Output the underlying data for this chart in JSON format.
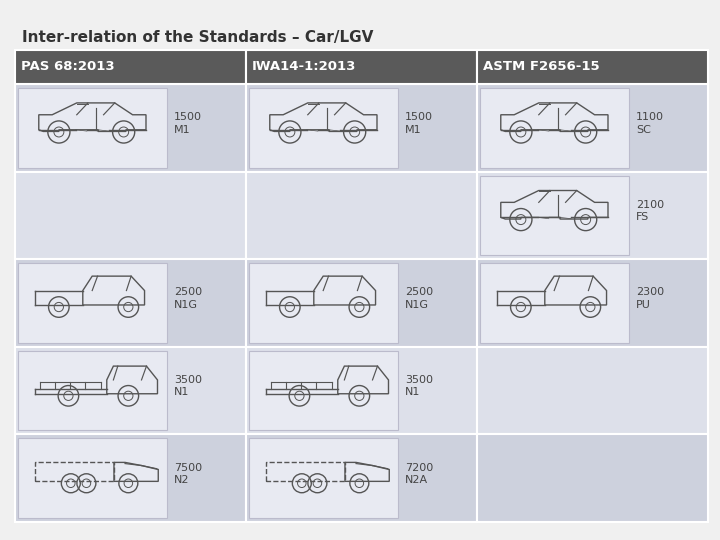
{
  "title": "Inter-relation of the Standards – Car/LGV",
  "title_fontsize": 11,
  "title_color": "#333333",
  "bg_color": "#f0f0f0",
  "header_bg": "#5a5a5a",
  "header_text_color": "#ffffff",
  "cell_bg_light": "#cdd1dd",
  "cell_bg_lighter": "#dde0ea",
  "cell_img_bg": "#e8eaf2",
  "headers": [
    "PAS 68:2013",
    "IWA14-1:2013",
    "ASTM F2656-15"
  ],
  "row_labels": [
    [
      "1500\nM1",
      "1500\nM1",
      "1100\nSC"
    ],
    [
      "",
      "",
      "2100\nFS"
    ],
    [
      "2500\nN1G",
      "2500\nN1G",
      "2300\nPU"
    ],
    [
      "3500\nN1",
      "3500\nN1",
      ""
    ],
    [
      "7500\nN2",
      "7200\nN2A",
      ""
    ]
  ],
  "num_rows": 5,
  "label_fontsize": 8,
  "header_fontsize": 9.5,
  "vehicle_color": "#555555",
  "vehicle_lw": 1.0
}
